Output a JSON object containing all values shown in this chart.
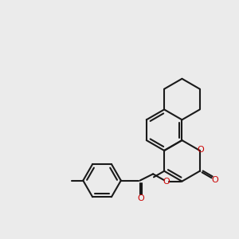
{
  "bg_color": "#ebebeb",
  "bond_color": "#1a1a1a",
  "oxygen_color": "#cc0000",
  "lw": 1.5,
  "R": 0.78,
  "figsize": [
    3.0,
    3.0
  ],
  "dpi": 100,
  "xlim": [
    0.5,
    9.5
  ],
  "ylim": [
    2.5,
    8.5
  ],
  "inner_off": 0.115,
  "inner_sh": 0.13
}
